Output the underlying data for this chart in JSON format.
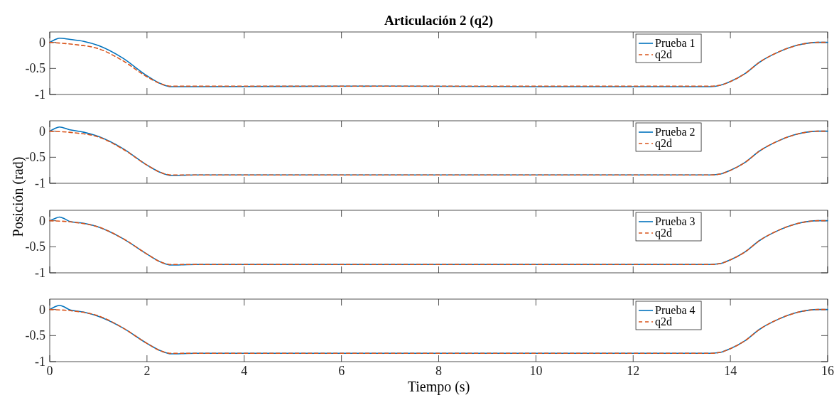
{
  "chart_data": [
    {
      "type": "line",
      "title": "Articulación 2 (q2)",
      "xlim": [
        0,
        16
      ],
      "xticks": [
        0,
        2,
        4,
        6,
        8,
        10,
        12,
        14,
        16
      ],
      "ylim": [
        -1,
        0.2
      ],
      "yticks": [
        -1,
        -0.5,
        0
      ],
      "tick_labels": "y",
      "legend": "top right",
      "grid": false,
      "series": [
        {
          "name": "Prueba 1",
          "color": "#0072bd",
          "line_style": "solid",
          "x": [
            0,
            0.1,
            0.2,
            0.4,
            0.7,
            1,
            1.5,
            2,
            2.3,
            2.5,
            3,
            6.7,
            10,
            13.6,
            13.8,
            14,
            14.3,
            14.6,
            15,
            15.4,
            15.8,
            16
          ],
          "values": [
            0,
            0.05,
            0.08,
            0.06,
            0.02,
            -0.06,
            -0.3,
            -0.64,
            -0.8,
            -0.85,
            -0.85,
            -0.84,
            -0.85,
            -0.85,
            -0.82,
            -0.75,
            -0.6,
            -0.38,
            -0.18,
            -0.05,
            0,
            0
          ]
        },
        {
          "name": "q2d",
          "color": "#d95319",
          "line_style": "dashed",
          "x": [
            0,
            0.5,
            1,
            1.5,
            2,
            2.3,
            2.5,
            3,
            13.6,
            13.8,
            14,
            14.3,
            14.6,
            15,
            15.4,
            15.8,
            16
          ],
          "values": [
            0,
            -0.04,
            -0.12,
            -0.35,
            -0.66,
            -0.8,
            -0.84,
            -0.84,
            -0.84,
            -0.82,
            -0.75,
            -0.6,
            -0.38,
            -0.18,
            -0.05,
            0,
            0
          ]
        }
      ]
    },
    {
      "type": "line",
      "ylabel": "Posición (rad)",
      "xlim": [
        0,
        16
      ],
      "xticks": [
        0,
        2,
        4,
        6,
        8,
        10,
        12,
        14,
        16
      ],
      "ylim": [
        -1,
        0.2
      ],
      "yticks": [
        -1,
        -0.5,
        0
      ],
      "tick_labels": "y",
      "legend": "top right",
      "grid": false,
      "series": [
        {
          "name": "Prueba 2",
          "color": "#0072bd",
          "line_style": "solid",
          "x": [
            0,
            0.1,
            0.2,
            0.4,
            0.7,
            1,
            1.5,
            2,
            2.3,
            2.5,
            3,
            13.6,
            13.8,
            14,
            14.3,
            14.6,
            15,
            15.4,
            15.8,
            16
          ],
          "values": [
            0,
            0.05,
            0.08,
            0.03,
            -0.02,
            -0.1,
            -0.33,
            -0.65,
            -0.8,
            -0.85,
            -0.84,
            -0.84,
            -0.82,
            -0.75,
            -0.6,
            -0.38,
            -0.18,
            -0.05,
            0,
            0
          ]
        },
        {
          "name": "q2d",
          "color": "#d95319",
          "line_style": "dashed",
          "x": [
            0,
            0.5,
            1,
            1.5,
            2,
            2.3,
            2.5,
            3,
            13.6,
            13.8,
            14,
            14.3,
            14.6,
            15,
            15.4,
            15.8,
            16
          ],
          "values": [
            0,
            -0.03,
            -0.11,
            -0.34,
            -0.65,
            -0.8,
            -0.84,
            -0.84,
            -0.84,
            -0.82,
            -0.75,
            -0.6,
            -0.38,
            -0.18,
            -0.05,
            0,
            0
          ]
        }
      ]
    },
    {
      "type": "line",
      "xlim": [
        0,
        16
      ],
      "xticks": [
        0,
        2,
        4,
        6,
        8,
        10,
        12,
        14,
        16
      ],
      "ylim": [
        -1,
        0.2
      ],
      "yticks": [
        -1,
        -0.5,
        0
      ],
      "tick_labels": "y",
      "legend": "top right",
      "grid": false,
      "series": [
        {
          "name": "Prueba 3",
          "color": "#0072bd",
          "line_style": "solid",
          "x": [
            0,
            0.1,
            0.2,
            0.3,
            0.4,
            0.7,
            1,
            1.5,
            2,
            2.3,
            2.5,
            3,
            13.6,
            13.8,
            14,
            14.3,
            14.6,
            15,
            15.4,
            15.8,
            16
          ],
          "values": [
            0,
            0.04,
            0.07,
            0.04,
            -0.01,
            -0.05,
            -0.12,
            -0.34,
            -0.64,
            -0.8,
            -0.85,
            -0.84,
            -0.84,
            -0.82,
            -0.75,
            -0.6,
            -0.38,
            -0.18,
            -0.05,
            0,
            0
          ]
        },
        {
          "name": "q2d",
          "color": "#d95319",
          "line_style": "dashed",
          "x": [
            0,
            0.5,
            1,
            1.5,
            2,
            2.3,
            2.5,
            3,
            13.6,
            13.8,
            14,
            14.3,
            14.6,
            15,
            15.4,
            15.8,
            16
          ],
          "values": [
            0,
            -0.03,
            -0.12,
            -0.34,
            -0.64,
            -0.8,
            -0.84,
            -0.84,
            -0.84,
            -0.82,
            -0.75,
            -0.6,
            -0.38,
            -0.18,
            -0.05,
            0,
            0
          ]
        }
      ]
    },
    {
      "type": "line",
      "xlabel": "Tiempo (s)",
      "xlim": [
        0,
        16
      ],
      "xticks": [
        0,
        2,
        4,
        6,
        8,
        10,
        12,
        14,
        16
      ],
      "ylim": [
        -1,
        0.2
      ],
      "yticks": [
        -1,
        -0.5,
        0
      ],
      "legend": "top right",
      "grid": false,
      "series": [
        {
          "name": "Prueba 4",
          "color": "#0072bd",
          "line_style": "solid",
          "x": [
            0,
            0.1,
            0.2,
            0.3,
            0.4,
            0.7,
            1,
            1.5,
            2,
            2.3,
            2.5,
            3,
            13.6,
            13.8,
            14,
            14.3,
            14.6,
            15,
            15.4,
            15.8,
            16
          ],
          "values": [
            0,
            0.05,
            0.08,
            0.05,
            0,
            -0.05,
            -0.13,
            -0.35,
            -0.65,
            -0.8,
            -0.85,
            -0.84,
            -0.84,
            -0.82,
            -0.75,
            -0.6,
            -0.38,
            -0.18,
            -0.05,
            0,
            0
          ]
        },
        {
          "name": "q2d",
          "color": "#d95319",
          "line_style": "dashed",
          "x": [
            0,
            0.5,
            1,
            1.5,
            2,
            2.3,
            2.5,
            3,
            13.6,
            13.8,
            14,
            14.3,
            14.6,
            15,
            15.4,
            15.8,
            16
          ],
          "values": [
            0,
            -0.03,
            -0.12,
            -0.35,
            -0.65,
            -0.8,
            -0.84,
            -0.84,
            -0.84,
            -0.82,
            -0.75,
            -0.6,
            -0.38,
            -0.18,
            -0.05,
            0,
            0
          ]
        }
      ]
    }
  ]
}
